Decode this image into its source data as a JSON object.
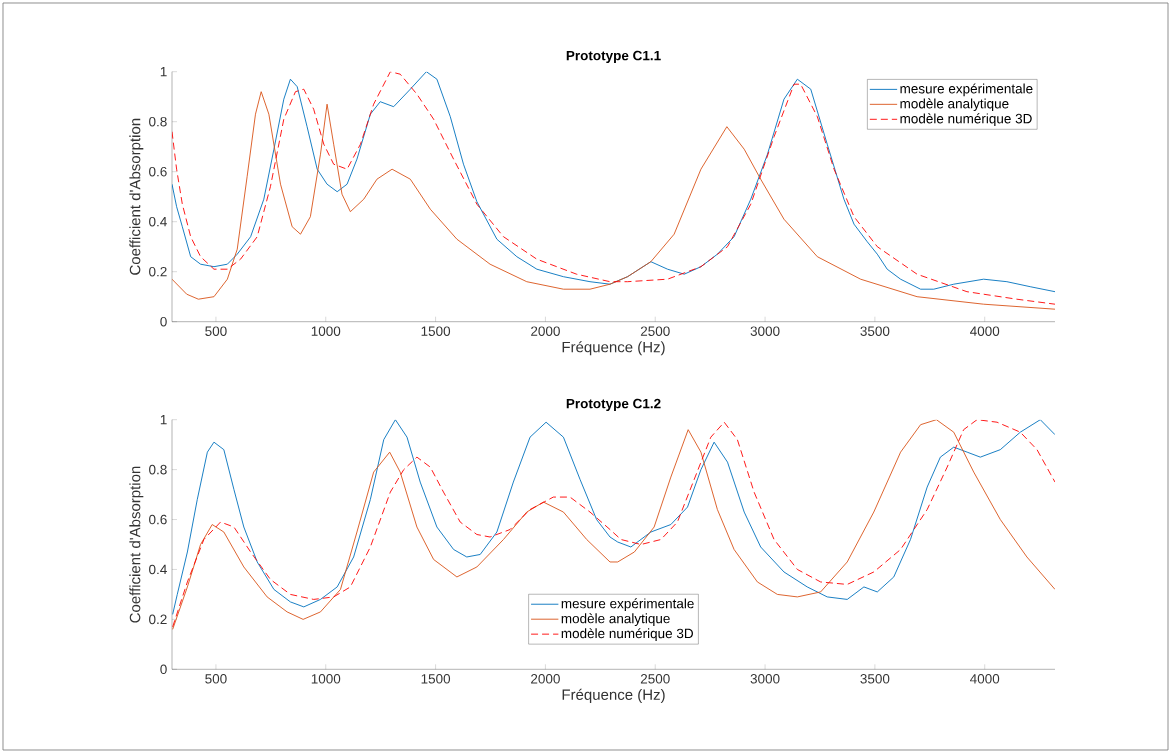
{
  "chart_data": [
    {
      "type": "line",
      "title": "Prototype C1.1",
      "xlabel": "Fréquence (Hz)",
      "ylabel": "Coefficient d'Absorption",
      "xlim": [
        300,
        4320
      ],
      "ylim": [
        0,
        1
      ],
      "xticks": [
        500,
        1000,
        1500,
        2000,
        2500,
        3000,
        3500,
        4000
      ],
      "yticks": [
        0,
        0.2,
        0.4,
        0.6,
        0.8,
        1
      ],
      "legend": "top right",
      "marker": "none",
      "series": [
        {
          "name": "mesure expérimentale",
          "color": "#0072bd",
          "line_style": "solid",
          "x": [
            300,
            321,
            347,
            385,
            430,
            491,
            552,
            597,
            658,
            718,
            764,
            809,
            839,
            870,
            915,
            961,
            1006,
            1052,
            1097,
            1142,
            1203,
            1248,
            1309,
            1385,
            1458,
            1506,
            1567,
            1627,
            1688,
            1779,
            1870,
            1961,
            2082,
            2203,
            2294,
            2374,
            2480,
            2556,
            2632,
            2708,
            2783,
            2859,
            2935,
            3011,
            3086,
            3147,
            3208,
            3283,
            3359,
            3405,
            3465,
            3511,
            3556,
            3617,
            3708,
            3768,
            3859,
            3995,
            4101,
            4207,
            4320
          ],
          "values": [
            0.55,
            0.46,
            0.38,
            0.26,
            0.23,
            0.22,
            0.23,
            0.27,
            0.34,
            0.49,
            0.69,
            0.89,
            0.97,
            0.94,
            0.78,
            0.61,
            0.55,
            0.52,
            0.55,
            0.65,
            0.83,
            0.88,
            0.86,
            0.93,
            1.0,
            0.97,
            0.82,
            0.63,
            0.48,
            0.33,
            0.26,
            0.21,
            0.18,
            0.16,
            0.15,
            0.18,
            0.24,
            0.21,
            0.19,
            0.22,
            0.27,
            0.34,
            0.49,
            0.67,
            0.89,
            0.97,
            0.93,
            0.71,
            0.49,
            0.39,
            0.32,
            0.27,
            0.21,
            0.17,
            0.13,
            0.13,
            0.15,
            0.17,
            0.16,
            0.14,
            0.12
          ]
        },
        {
          "name": "modèle analytique",
          "color": "#d95319",
          "line_style": "solid",
          "x": [
            300,
            367,
            420,
            491,
            552,
            597,
            642,
            680,
            706,
            741,
            794,
            847,
            885,
            930,
            976,
            1006,
            1036,
            1074,
            1112,
            1173,
            1233,
            1302,
            1385,
            1476,
            1597,
            1748,
            1915,
            2082,
            2203,
            2294,
            2374,
            2480,
            2586,
            2708,
            2826,
            2905,
            2980,
            3086,
            3238,
            3435,
            3692,
            3995,
            4320
          ],
          "values": [
            0.17,
            0.11,
            0.09,
            0.1,
            0.17,
            0.29,
            0.58,
            0.83,
            0.92,
            0.83,
            0.55,
            0.38,
            0.35,
            0.42,
            0.67,
            0.87,
            0.71,
            0.51,
            0.44,
            0.49,
            0.57,
            0.61,
            0.57,
            0.45,
            0.33,
            0.23,
            0.16,
            0.13,
            0.13,
            0.15,
            0.18,
            0.24,
            0.35,
            0.61,
            0.78,
            0.69,
            0.57,
            0.41,
            0.26,
            0.17,
            0.1,
            0.07,
            0.05
          ]
        },
        {
          "name": "modèle numérique 3D",
          "color": "#ff0000",
          "line_style": "dashed",
          "x": [
            300,
            321,
            347,
            385,
            430,
            491,
            552,
            612,
            688,
            748,
            809,
            862,
            900,
            945,
            991,
            1036,
            1097,
            1158,
            1218,
            1294,
            1339,
            1415,
            1491,
            1582,
            1688,
            1809,
            1961,
            2142,
            2294,
            2374,
            2556,
            2708,
            2829,
            2935,
            3041,
            3132,
            3162,
            3238,
            3314,
            3405,
            3511,
            3692,
            3919,
            4146,
            4320
          ],
          "values": [
            0.76,
            0.61,
            0.47,
            0.34,
            0.26,
            0.21,
            0.21,
            0.25,
            0.34,
            0.54,
            0.81,
            0.92,
            0.93,
            0.85,
            0.71,
            0.63,
            0.61,
            0.71,
            0.87,
            1.0,
            0.99,
            0.91,
            0.81,
            0.65,
            0.47,
            0.34,
            0.25,
            0.19,
            0.16,
            0.16,
            0.17,
            0.22,
            0.3,
            0.47,
            0.74,
            0.95,
            0.95,
            0.82,
            0.61,
            0.42,
            0.3,
            0.19,
            0.12,
            0.09,
            0.07
          ]
        }
      ]
    },
    {
      "type": "line",
      "title": "Prototype C1.2",
      "xlabel": "Fréquence (Hz)",
      "ylabel": "Coefficient d'Absorption",
      "xlim": [
        300,
        4320
      ],
      "ylim": [
        0,
        1
      ],
      "xticks": [
        500,
        1000,
        1500,
        2000,
        2500,
        3000,
        3500,
        4000
      ],
      "yticks": [
        0,
        0.2,
        0.4,
        0.6,
        0.8,
        1
      ],
      "legend": "bottom",
      "marker": "none",
      "series": [
        {
          "name": "mesure expérimentale",
          "color": "#0072bd",
          "line_style": "solid",
          "x": [
            303,
            324,
            370,
            415,
            461,
            491,
            536,
            582,
            627,
            688,
            764,
            839,
            900,
            976,
            1052,
            1127,
            1203,
            1264,
            1317,
            1370,
            1430,
            1506,
            1582,
            1642,
            1703,
            1779,
            1854,
            1930,
            2003,
            2082,
            2158,
            2233,
            2294,
            2329,
            2389,
            2480,
            2571,
            2647,
            2708,
            2768,
            2829,
            2905,
            2980,
            3086,
            3192,
            3283,
            3374,
            3450,
            3511,
            3586,
            3662,
            3738,
            3798,
            3859,
            3920,
            3980,
            4071,
            4162,
            4253,
            4320
          ],
          "values": [
            0.22,
            0.3,
            0.47,
            0.68,
            0.87,
            0.91,
            0.88,
            0.72,
            0.57,
            0.43,
            0.32,
            0.27,
            0.25,
            0.28,
            0.33,
            0.45,
            0.68,
            0.92,
            1.0,
            0.93,
            0.75,
            0.57,
            0.48,
            0.45,
            0.46,
            0.55,
            0.75,
            0.93,
            0.99,
            0.93,
            0.76,
            0.6,
            0.53,
            0.51,
            0.49,
            0.55,
            0.58,
            0.65,
            0.8,
            0.91,
            0.83,
            0.63,
            0.49,
            0.39,
            0.33,
            0.29,
            0.28,
            0.33,
            0.31,
            0.37,
            0.52,
            0.73,
            0.85,
            0.89,
            0.87,
            0.85,
            0.88,
            0.95,
            1.0,
            0.94
          ]
        },
        {
          "name": "modèle analytique",
          "color": "#d95319",
          "line_style": "solid",
          "x": [
            303,
            370,
            430,
            483,
            536,
            627,
            733,
            824,
            897,
            976,
            1067,
            1142,
            1218,
            1291,
            1339,
            1415,
            1491,
            1597,
            1688,
            1809,
            1915,
            1991,
            2082,
            2188,
            2294,
            2329,
            2405,
            2495,
            2571,
            2650,
            2708,
            2783,
            2859,
            2965,
            3056,
            3147,
            3253,
            3374,
            3495,
            3617,
            3708,
            3780,
            3859,
            3950,
            4071,
            4192,
            4320
          ],
          "values": [
            0.16,
            0.33,
            0.5,
            0.58,
            0.55,
            0.41,
            0.29,
            0.23,
            0.2,
            0.23,
            0.32,
            0.55,
            0.79,
            0.87,
            0.79,
            0.57,
            0.44,
            0.37,
            0.41,
            0.52,
            0.63,
            0.67,
            0.63,
            0.52,
            0.43,
            0.43,
            0.47,
            0.57,
            0.77,
            0.96,
            0.87,
            0.64,
            0.48,
            0.35,
            0.3,
            0.29,
            0.31,
            0.43,
            0.63,
            0.87,
            0.98,
            1.0,
            0.95,
            0.79,
            0.6,
            0.45,
            0.32
          ]
        },
        {
          "name": "modèle numérique 3D",
          "color": "#ff0000",
          "line_style": "dashed",
          "x": [
            303,
            370,
            445,
            521,
            582,
            658,
            748,
            839,
            945,
            1036,
            1112,
            1203,
            1294,
            1355,
            1415,
            1476,
            1536,
            1612,
            1688,
            1748,
            1839,
            1930,
            2036,
            2112,
            2203,
            2294,
            2344,
            2435,
            2526,
            2601,
            2677,
            2753,
            2814,
            2874,
            2950,
            3041,
            3147,
            3253,
            3374,
            3495,
            3617,
            3738,
            3829,
            3904,
            3965,
            4056,
            4162,
            4238,
            4320
          ],
          "values": [
            0.17,
            0.35,
            0.52,
            0.59,
            0.57,
            0.47,
            0.36,
            0.3,
            0.28,
            0.29,
            0.33,
            0.49,
            0.71,
            0.8,
            0.85,
            0.81,
            0.71,
            0.59,
            0.54,
            0.53,
            0.56,
            0.64,
            0.69,
            0.69,
            0.63,
            0.56,
            0.52,
            0.5,
            0.52,
            0.59,
            0.76,
            0.93,
            0.99,
            0.92,
            0.71,
            0.52,
            0.4,
            0.35,
            0.34,
            0.39,
            0.48,
            0.64,
            0.81,
            0.96,
            1.0,
            0.99,
            0.95,
            0.88,
            0.75
          ]
        }
      ]
    }
  ]
}
